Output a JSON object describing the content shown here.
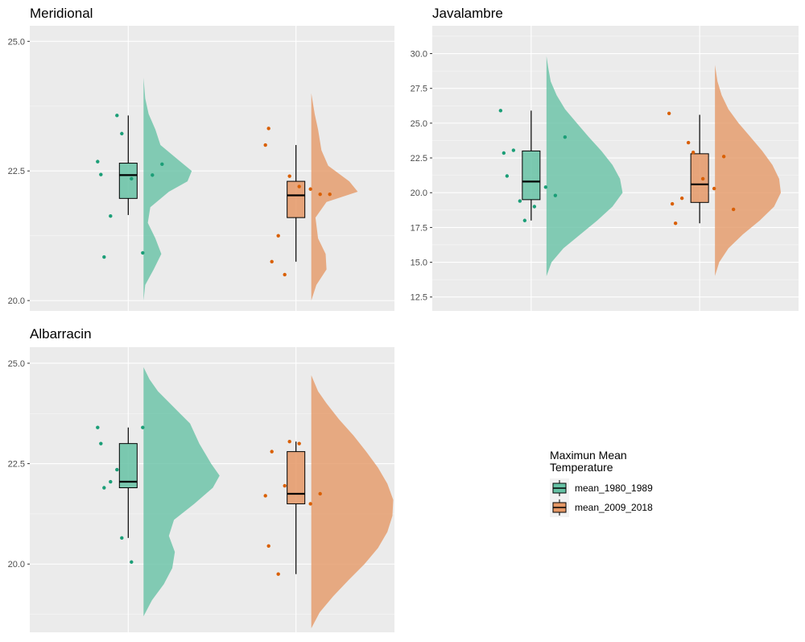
{
  "chart_data": {
    "type": "raincloud",
    "panels": [
      {
        "title": "Meridional",
        "ylim": [
          19.8,
          25.3
        ],
        "yticks": [
          "20.0",
          "22.5",
          "25.0"
        ],
        "series": [
          {
            "name": "mean_1980_1989",
            "color": "#1b9e77",
            "fill": "#66c2a5",
            "box": {
              "min": 21.65,
              "q1": 21.97,
              "median": 22.42,
              "q3": 22.65,
              "max": 23.57
            },
            "points": [
              22.68,
              22.43,
              21.63,
              20.84,
              23.57,
              23.22,
              22.35,
              20.92,
              22.42,
              22.63
            ],
            "density": [
              [
                20.0,
                0.0
              ],
              [
                20.3,
                0.02
              ],
              [
                20.6,
                0.12
              ],
              [
                20.9,
                0.21
              ],
              [
                21.2,
                0.14
              ],
              [
                21.5,
                0.05
              ],
              [
                21.8,
                0.08
              ],
              [
                22.1,
                0.3
              ],
              [
                22.3,
                0.52
              ],
              [
                22.5,
                0.57
              ],
              [
                22.7,
                0.42
              ],
              [
                23.0,
                0.2
              ],
              [
                23.3,
                0.14
              ],
              [
                23.6,
                0.06
              ],
              [
                23.9,
                0.02
              ],
              [
                24.3,
                0.0
              ]
            ]
          },
          {
            "name": "mean_2009_2018",
            "color": "#d95f02",
            "fill": "#e59866",
            "box": {
              "min": 20.75,
              "q1": 21.6,
              "median": 22.03,
              "q3": 22.3,
              "max": 23.0
            },
            "points": [
              23.0,
              23.32,
              21.25,
              20.75,
              20.5,
              22.4,
              22.2,
              22.15,
              22.05,
              22.05
            ],
            "density": [
              [
                20.0,
                0.0
              ],
              [
                20.3,
                0.06
              ],
              [
                20.6,
                0.18
              ],
              [
                20.9,
                0.17
              ],
              [
                21.2,
                0.08
              ],
              [
                21.6,
                0.05
              ],
              [
                21.9,
                0.18
              ],
              [
                22.1,
                0.55
              ],
              [
                22.3,
                0.45
              ],
              [
                22.6,
                0.2
              ],
              [
                22.9,
                0.12
              ],
              [
                23.3,
                0.08
              ],
              [
                23.6,
                0.04
              ],
              [
                24.0,
                0.0
              ]
            ]
          }
        ]
      },
      {
        "title": "Javalambre",
        "ylim": [
          11.5,
          32.0
        ],
        "yticks": [
          "12.5",
          "15.0",
          "17.5",
          "20.0",
          "22.5",
          "25.0",
          "27.5",
          "30.0"
        ],
        "series": [
          {
            "name": "mean_1980_1989",
            "color": "#1b9e77",
            "fill": "#66c2a5",
            "box": {
              "min": 18.0,
              "q1": 19.5,
              "median": 20.8,
              "q3": 23.0,
              "max": 25.9
            },
            "points": [
              25.9,
              22.85,
              23.05,
              21.2,
              19.4,
              18.0,
              19.0,
              20.4,
              19.8,
              24.0
            ],
            "density": [
              [
                14.0,
                0.0
              ],
              [
                15.0,
                0.06
              ],
              [
                16.0,
                0.2
              ],
              [
                17.0,
                0.4
              ],
              [
                18.0,
                0.6
              ],
              [
                19.0,
                0.78
              ],
              [
                20.0,
                0.9
              ],
              [
                21.0,
                0.87
              ],
              [
                22.0,
                0.78
              ],
              [
                23.0,
                0.65
              ],
              [
                24.0,
                0.5
              ],
              [
                25.0,
                0.36
              ],
              [
                26.0,
                0.22
              ],
              [
                27.0,
                0.12
              ],
              [
                28.0,
                0.05
              ],
              [
                29.0,
                0.02
              ],
              [
                29.8,
                0.0
              ]
            ]
          },
          {
            "name": "mean_2009_2018",
            "color": "#d95f02",
            "fill": "#e59866",
            "box": {
              "min": 17.8,
              "q1": 19.3,
              "median": 20.6,
              "q3": 22.8,
              "max": 25.6
            },
            "points": [
              25.7,
              19.2,
              19.6,
              17.8,
              23.6,
              22.9,
              21.0,
              20.3,
              22.6,
              18.8
            ],
            "density": [
              [
                14.0,
                0.0
              ],
              [
                15.0,
                0.05
              ],
              [
                16.0,
                0.16
              ],
              [
                17.0,
                0.33
              ],
              [
                18.0,
                0.53
              ],
              [
                19.0,
                0.7
              ],
              [
                20.0,
                0.78
              ],
              [
                21.0,
                0.76
              ],
              [
                22.0,
                0.68
              ],
              [
                23.0,
                0.56
              ],
              [
                24.0,
                0.42
              ],
              [
                25.0,
                0.28
              ],
              [
                26.0,
                0.16
              ],
              [
                27.0,
                0.08
              ],
              [
                28.0,
                0.03
              ],
              [
                29.2,
                0.0
              ]
            ]
          }
        ]
      },
      {
        "title": "Albarracin",
        "ylim": [
          18.3,
          25.4
        ],
        "yticks": [
          "20.0",
          "22.5",
          "25.0"
        ],
        "series": [
          {
            "name": "mean_1980_1989",
            "color": "#1b9e77",
            "fill": "#66c2a5",
            "box": {
              "min": 20.65,
              "q1": 21.9,
              "median": 22.05,
              "q3": 23.0,
              "max": 23.4
            },
            "points": [
              23.4,
              23.0,
              22.05,
              21.9,
              22.35,
              20.65,
              20.05,
              23.4
            ],
            "density": [
              [
                18.7,
                0.0
              ],
              [
                19.1,
                0.1
              ],
              [
                19.5,
                0.24
              ],
              [
                19.9,
                0.34
              ],
              [
                20.3,
                0.37
              ],
              [
                20.7,
                0.3
              ],
              [
                21.1,
                0.36
              ],
              [
                21.5,
                0.6
              ],
              [
                21.9,
                0.82
              ],
              [
                22.2,
                0.9
              ],
              [
                22.5,
                0.8
              ],
              [
                23.0,
                0.66
              ],
              [
                23.5,
                0.55
              ],
              [
                23.9,
                0.36
              ],
              [
                24.3,
                0.17
              ],
              [
                24.6,
                0.07
              ],
              [
                24.9,
                0.0
              ]
            ]
          },
          {
            "name": "mean_2009_2018",
            "color": "#d95f02",
            "fill": "#e59866",
            "box": {
              "min": 19.75,
              "q1": 21.5,
              "median": 21.75,
              "q3": 22.8,
              "max": 23.05
            },
            "points": [
              21.7,
              20.45,
              19.75,
              22.8,
              21.95,
              23.05,
              23.0,
              21.5,
              21.75
            ],
            "density": [
              [
                18.4,
                0.0
              ],
              [
                18.8,
                0.1
              ],
              [
                19.2,
                0.26
              ],
              [
                19.6,
                0.44
              ],
              [
                20.0,
                0.63
              ],
              [
                20.4,
                0.79
              ],
              [
                20.8,
                0.9
              ],
              [
                21.2,
                0.96
              ],
              [
                21.6,
                0.97
              ],
              [
                22.0,
                0.9
              ],
              [
                22.4,
                0.79
              ],
              [
                22.8,
                0.65
              ],
              [
                23.2,
                0.5
              ],
              [
                23.6,
                0.33
              ],
              [
                24.0,
                0.18
              ],
              [
                24.3,
                0.08
              ],
              [
                24.7,
                0.0
              ]
            ]
          }
        ]
      }
    ],
    "legend": {
      "title_line1": "Maximun Mean",
      "title_line2": "Temperature",
      "entries": [
        "mean_1980_1989",
        "mean_2009_2018"
      ],
      "placement": "bottom-right"
    },
    "grid": true
  }
}
